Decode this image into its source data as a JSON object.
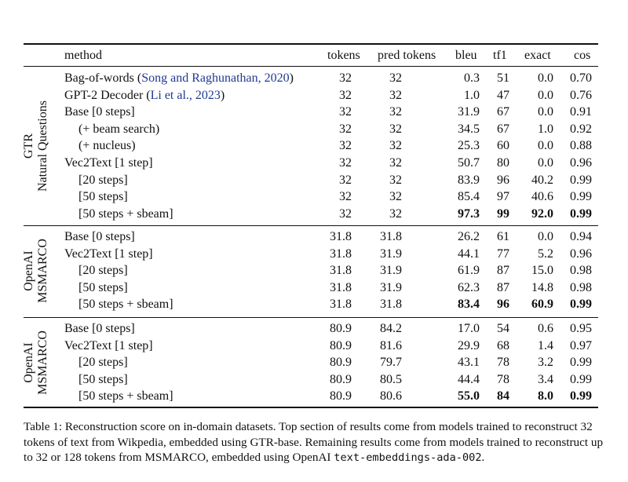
{
  "columns": [
    "method",
    "tokens",
    "pred tokens",
    "bleu",
    "tf1",
    "exact",
    "cos"
  ],
  "groups": [
    {
      "label_lines": [
        "GTR",
        "Natural Questions"
      ],
      "rows": [
        {
          "pre": "Bag-of-words (",
          "cite": "Song and Raghunathan, 2020",
          "post": ")",
          "indent": 0,
          "tokens": "32",
          "pred": "32",
          "bleu": "0.3",
          "tf1": "51",
          "exact": "0.0",
          "cos": "0.70",
          "bold": []
        },
        {
          "pre": "GPT-2 Decoder (",
          "cite": "Li et al., 2023",
          "post": ")",
          "indent": 0,
          "tokens": "32",
          "pred": "32",
          "bleu": "1.0",
          "tf1": "47",
          "exact": "0.0",
          "cos": "0.76",
          "bold": []
        },
        {
          "pre": "Base [0 steps]",
          "cite": "",
          "post": "",
          "indent": 0,
          "tokens": "32",
          "pred": "32",
          "bleu": "31.9",
          "tf1": "67",
          "exact": "0.0",
          "cos": "0.91",
          "bold": []
        },
        {
          "pre": "(+ beam search)",
          "cite": "",
          "post": "",
          "indent": 1,
          "tokens": "32",
          "pred": "32",
          "bleu": "34.5",
          "tf1": "67",
          "exact": "1.0",
          "cos": "0.92",
          "bold": []
        },
        {
          "pre": "(+ nucleus)",
          "cite": "",
          "post": "",
          "indent": 1,
          "tokens": "32",
          "pred": "32",
          "bleu": "25.3",
          "tf1": "60",
          "exact": "0.0",
          "cos": "0.88",
          "bold": []
        },
        {
          "pre": "Vec2Text [1 step]",
          "cite": "",
          "post": "",
          "indent": 0,
          "tokens": "32",
          "pred": "32",
          "bleu": "50.7",
          "tf1": "80",
          "exact": "0.0",
          "cos": "0.96",
          "bold": []
        },
        {
          "pre": "[20 steps]",
          "cite": "",
          "post": "",
          "indent": 1,
          "tokens": "32",
          "pred": "32",
          "bleu": "83.9",
          "tf1": "96",
          "exact": "40.2",
          "cos": "0.99",
          "bold": []
        },
        {
          "pre": "[50 steps]",
          "cite": "",
          "post": "",
          "indent": 1,
          "tokens": "32",
          "pred": "32",
          "bleu": "85.4",
          "tf1": "97",
          "exact": "40.6",
          "cos": "0.99",
          "bold": []
        },
        {
          "pre": "[50 steps + sbeam]",
          "cite": "",
          "post": "",
          "indent": 1,
          "tokens": "32",
          "pred": "32",
          "bleu": "97.3",
          "tf1": "99",
          "exact": "92.0",
          "cos": "0.99",
          "bold": [
            "bleu",
            "tf1",
            "exact",
            "cos"
          ]
        }
      ]
    },
    {
      "label_lines": [
        "OpenAI",
        "MSMARCO"
      ],
      "rows": [
        {
          "pre": "Base [0 steps]",
          "cite": "",
          "post": "",
          "indent": 0,
          "tokens": "31.8",
          "pred": "31.8",
          "bleu": "26.2",
          "tf1": "61",
          "exact": "0.0",
          "cos": "0.94",
          "bold": []
        },
        {
          "pre": "Vec2Text [1 step]",
          "cite": "",
          "post": "",
          "indent": 0,
          "tokens": "31.8",
          "pred": "31.9",
          "bleu": "44.1",
          "tf1": "77",
          "exact": "5.2",
          "cos": "0.96",
          "bold": []
        },
        {
          "pre": "[20 steps]",
          "cite": "",
          "post": "",
          "indent": 1,
          "tokens": "31.8",
          "pred": "31.9",
          "bleu": "61.9",
          "tf1": "87",
          "exact": "15.0",
          "cos": "0.98",
          "bold": []
        },
        {
          "pre": "[50 steps]",
          "cite": "",
          "post": "",
          "indent": 1,
          "tokens": "31.8",
          "pred": "31.9",
          "bleu": "62.3",
          "tf1": "87",
          "exact": "14.8",
          "cos": "0.98",
          "bold": []
        },
        {
          "pre": "[50 steps + sbeam]",
          "cite": "",
          "post": "",
          "indent": 1,
          "tokens": "31.8",
          "pred": "31.8",
          "bleu": "83.4",
          "tf1": "96",
          "exact": "60.9",
          "cos": "0.99",
          "bold": [
            "bleu",
            "tf1",
            "exact",
            "cos"
          ]
        }
      ]
    },
    {
      "label_lines": [
        "OpenAI",
        "MSMARCO"
      ],
      "rows": [
        {
          "pre": "Base [0 steps]",
          "cite": "",
          "post": "",
          "indent": 0,
          "tokens": "80.9",
          "pred": "84.2",
          "bleu": "17.0",
          "tf1": "54",
          "exact": "0.6",
          "cos": "0.95",
          "bold": []
        },
        {
          "pre": "Vec2Text [1 step]",
          "cite": "",
          "post": "",
          "indent": 0,
          "tokens": "80.9",
          "pred": "81.6",
          "bleu": "29.9",
          "tf1": "68",
          "exact": "1.4",
          "cos": "0.97",
          "bold": []
        },
        {
          "pre": "[20 steps]",
          "cite": "",
          "post": "",
          "indent": 1,
          "tokens": "80.9",
          "pred": "79.7",
          "bleu": "43.1",
          "tf1": "78",
          "exact": "3.2",
          "cos": "0.99",
          "bold": []
        },
        {
          "pre": "[50 steps]",
          "cite": "",
          "post": "",
          "indent": 1,
          "tokens": "80.9",
          "pred": "80.5",
          "bleu": "44.4",
          "tf1": "78",
          "exact": "3.4",
          "cos": "0.99",
          "bold": []
        },
        {
          "pre": "[50 steps + sbeam]",
          "cite": "",
          "post": "",
          "indent": 1,
          "tokens": "80.9",
          "pred": "80.6",
          "bleu": "55.0",
          "tf1": "84",
          "exact": "8.0",
          "cos": "0.99",
          "bold": [
            "bleu",
            "tf1",
            "exact",
            "cos"
          ]
        }
      ]
    }
  ],
  "caption": {
    "text": "Table 1: Reconstruction score on in-domain datasets. Top section of results come from models trained to reconstruct 32 tokens of text from Wikpedia, embedded using GTR-base. Remaining results come from models trained to reconstruct up to 32 or 128 tokens from MSMARCO, embedded using OpenAI ",
    "code": "text-embeddings-ada-002",
    "end": "."
  }
}
